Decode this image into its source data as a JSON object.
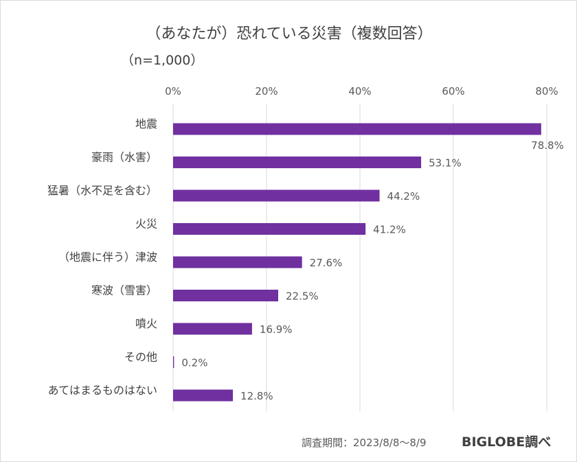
{
  "title": "（あなたが）恐れている災害（複数回答）",
  "subtitle": "（n=1,000）",
  "footer": {
    "period": "調査期間：2023/8/8～8/9",
    "brand": "BIGLOBE調べ"
  },
  "colors": {
    "bar": "#7030a0",
    "grid": "#d9d9d9"
  },
  "chart_data": {
    "type": "bar",
    "orientation": "horizontal",
    "categories": [
      "地震",
      "豪雨（水害）",
      "猛暑（水不足を含む）",
      "火災",
      "（地震に伴う）津波",
      "寒波（雪害）",
      "噴火",
      "その他",
      "あてはまるものはない"
    ],
    "values": [
      78.8,
      53.1,
      44.2,
      41.2,
      27.6,
      22.5,
      16.9,
      0.2,
      12.8
    ],
    "data_labels": [
      "78.8%",
      "53.1%",
      "44.2%",
      "41.2%",
      "27.6%",
      "22.5%",
      "16.9%",
      "0.2%",
      "12.8%"
    ],
    "xlim": [
      0,
      80
    ],
    "x_ticks": [
      0,
      20,
      40,
      60,
      80
    ],
    "x_tick_labels": [
      "0%",
      "20%",
      "40%",
      "60%",
      "80%"
    ],
    "x_axis_position": "top",
    "grid": true,
    "legend": "none"
  }
}
